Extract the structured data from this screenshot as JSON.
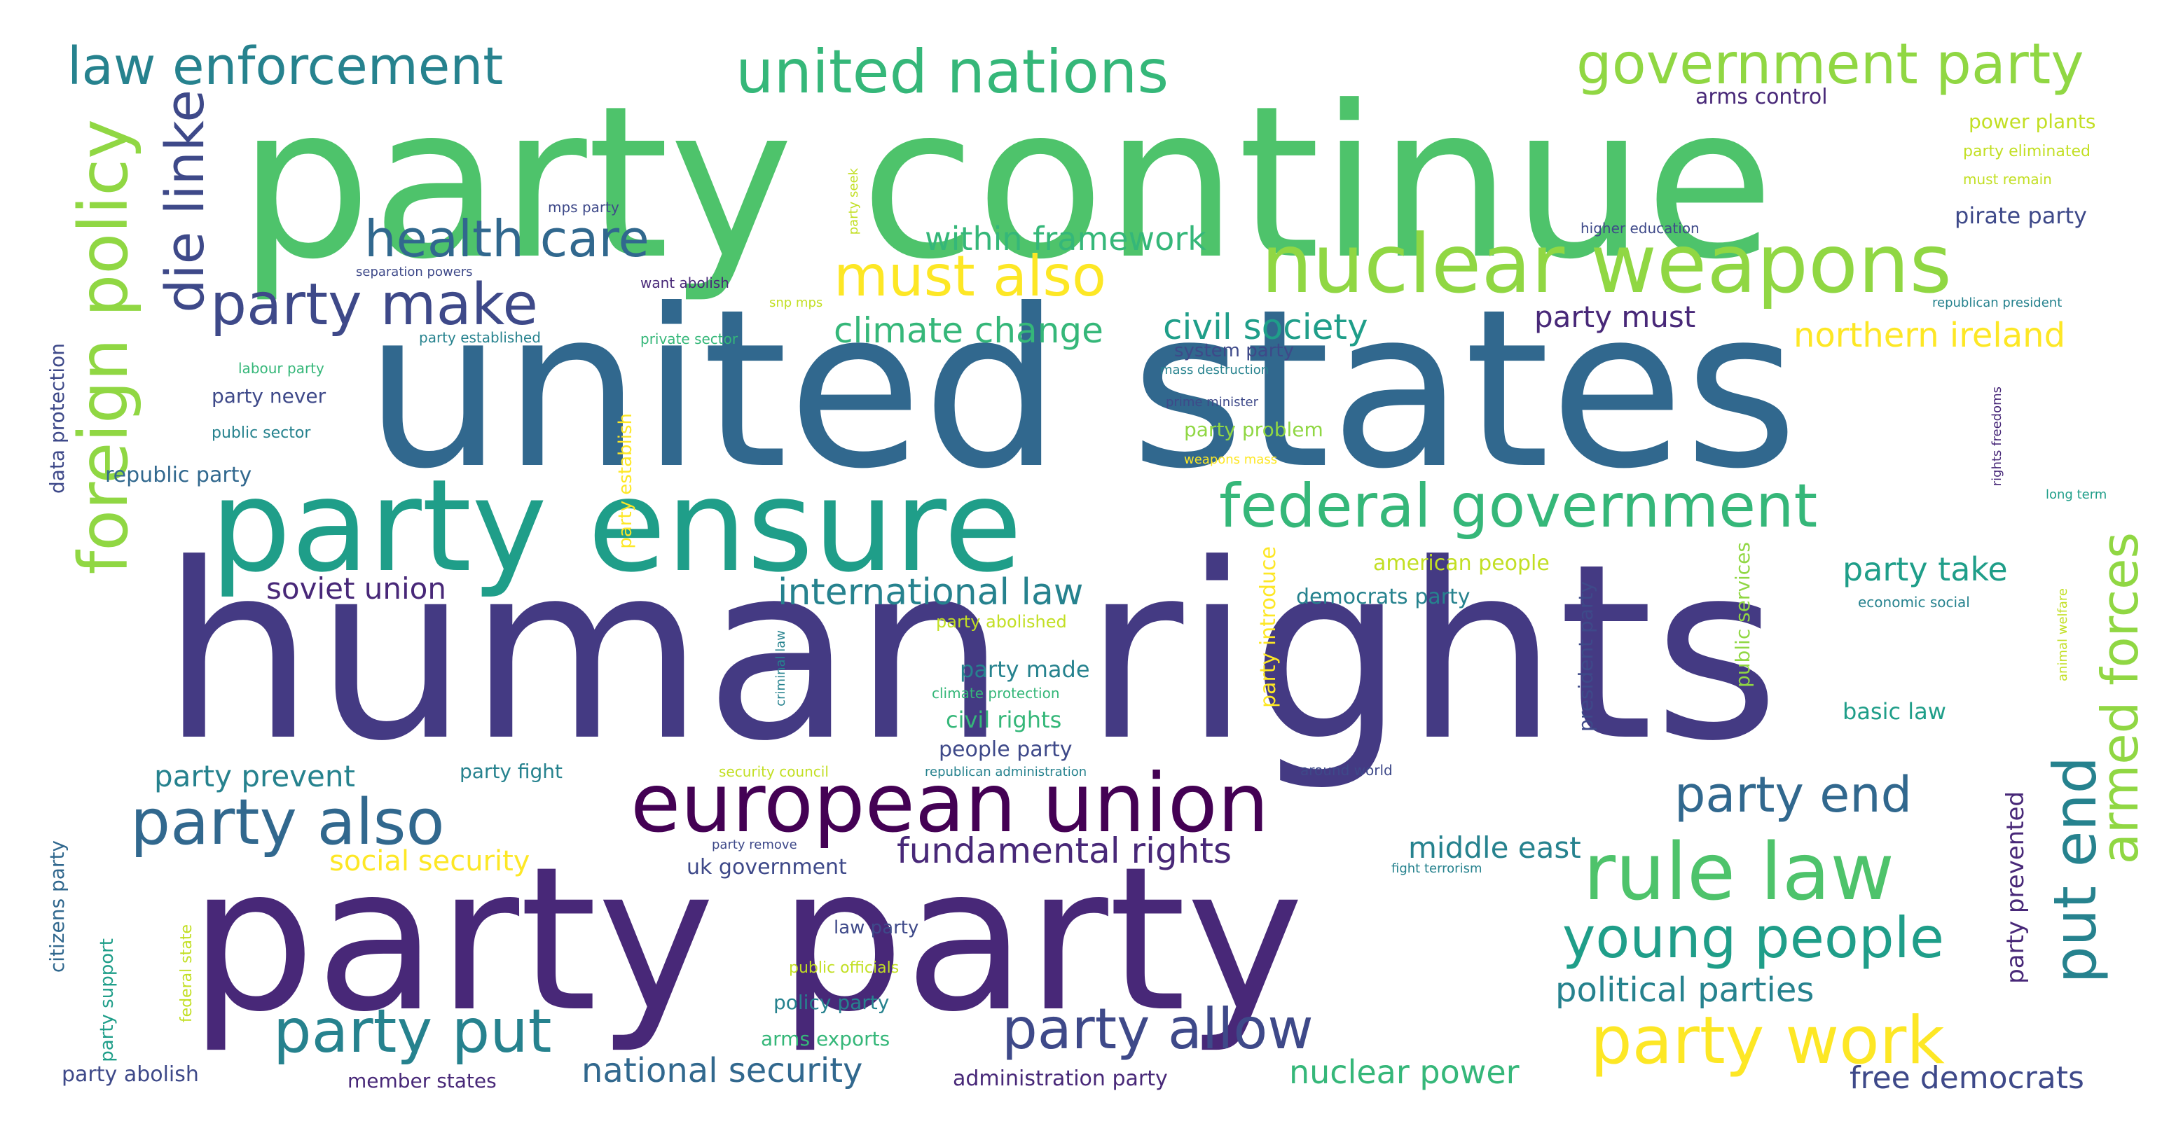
{
  "palette": {
    "dark_purple": "#440154",
    "indigo": "#482878",
    "violet_blue": "#443a83",
    "slate_blue": "#3e4989",
    "steel_blue": "#31688e",
    "teal_blue": "#26828e",
    "teal": "#1f9e89",
    "sea_green": "#35b779",
    "green": "#4ec36b",
    "lime": "#90d743",
    "yellow_green": "#c2df23",
    "yellow": "#fde725"
  },
  "words": [
    "party continue",
    "united states",
    "human rights",
    "party party",
    "party ensure",
    "nuclear weapons",
    "european union",
    "foreign policy",
    "united nations",
    "government party",
    "law enforcement",
    "die linke",
    "party make",
    "health care",
    "must also",
    "federal government",
    "party also",
    "rule law",
    "party work",
    "young people",
    "party put",
    "party allow",
    "put end",
    "armed forces",
    "party end",
    "fundamental rights",
    "international law",
    "climate change",
    "civil society",
    "northern ireland",
    "within framework",
    "soviet union",
    "national security",
    "nuclear power",
    "political parties",
    "free democrats",
    "party take",
    "middle east",
    "party must",
    "party prevent",
    "social security",
    "republic party",
    "arms control",
    "pirate party",
    "power plants",
    "basic law",
    "party made",
    "civil rights",
    "people party",
    "democrats party",
    "american people",
    "party abolish",
    "member states",
    "administration party",
    "uk government",
    "party fight",
    "law party",
    "policy party",
    "arms exports",
    "party never",
    "public sector",
    "party problem",
    "system party",
    "data protection",
    "citizens party",
    "party support",
    "party establish",
    "party introduce",
    "president party",
    "public services",
    "party prevented",
    "mps party",
    "want abolish",
    "separation powers",
    "party established",
    "private sector",
    "labour party",
    "snp mps",
    "party seek",
    "higher education",
    "must remain",
    "party eliminated",
    "republican president",
    "mass destruction",
    "prime minister",
    "weapons mass",
    "long term",
    "economic social",
    "party abolished",
    "climate protection",
    "security council",
    "republican administration",
    "around world",
    "party remove",
    "fight terrorism",
    "public officials",
    "federal state",
    "criminal law",
    "rights freedoms",
    "animal welfare"
  ]
}
